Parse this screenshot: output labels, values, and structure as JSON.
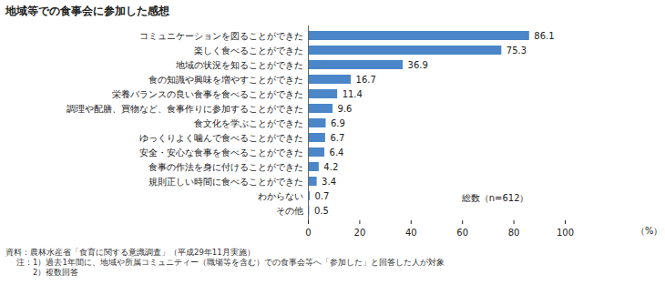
{
  "chart_data": {
    "type": "bar",
    "orientation": "horizontal",
    "title": "地域等での食事会に参加した感想",
    "categories": [
      "コミュニケーションを図ることができた",
      "楽しく食べることができた",
      "地域の状況を知ることができた",
      "食の知識や興味を増やすことができた",
      "栄養バランスの良い食事を食べることができた",
      "調理や配膳、買物など、食事作りに参加することができた",
      "食文化を学ぶことができた",
      "ゆっくりよく噛んで食べることができた",
      "安全・安心な食事を食べることができた",
      "食事の作法を身に付けることができた",
      "規則正しい時間に食べることができた",
      "わからない",
      "その他"
    ],
    "values": [
      86.1,
      75.3,
      36.9,
      16.7,
      11.4,
      9.6,
      6.9,
      6.7,
      6.4,
      4.2,
      3.4,
      0.7,
      0.5
    ],
    "color": "#4a86c8",
    "xlim": [
      0,
      100
    ],
    "xticks": [
      0,
      20,
      40,
      60,
      80,
      100
    ],
    "x_label": "（%）",
    "grid": false,
    "data_labels": true,
    "annotation": "総数（n=612）",
    "source": "資料：農林水産省「食育に関する意識調査」（平成29年11月実施）",
    "notes": [
      "注：1）過去1年間に、地域や所属コミュニティー（職場等を含む）での食事会等へ「参加した」と回答した人が対象",
      "2）複数回答"
    ]
  }
}
